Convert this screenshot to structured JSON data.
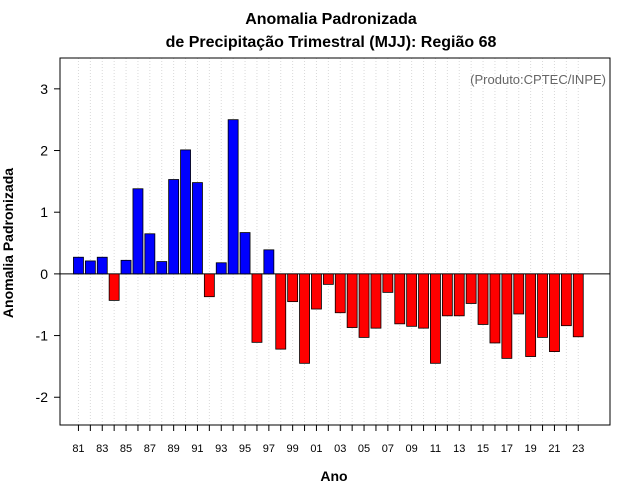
{
  "chart_data": {
    "type": "bar",
    "title": "Anomalia Padronizada",
    "subtitle": "de Precipitação Trimestral (MJJ): Região 68",
    "xlabel": "Ano",
    "ylabel": "Anomalia Padronizada",
    "credit": "(Produto:CPTEC/INPE)",
    "ylim": [
      -2.45,
      3.5
    ],
    "yticks": [
      -2,
      -1,
      0,
      1,
      2,
      3
    ],
    "ytick_labels": [
      "-2",
      "-1",
      "0",
      "1",
      "2",
      "3"
    ],
    "xtick_labels": [
      "81",
      "83",
      "85",
      "87",
      "89",
      "91",
      "93",
      "95",
      "97",
      "99",
      "01",
      "03",
      "05",
      "07",
      "09",
      "11",
      "13",
      "15",
      "17",
      "19",
      "21",
      "23"
    ],
    "categories": [
      "81",
      "82",
      "83",
      "84",
      "85",
      "86",
      "87",
      "88",
      "89",
      "90",
      "91",
      "92",
      "93",
      "94",
      "95",
      "96",
      "97",
      "98",
      "99",
      "00",
      "01",
      "02",
      "03",
      "04",
      "05",
      "06",
      "07",
      "08",
      "09",
      "10",
      "11",
      "12",
      "13",
      "14",
      "15",
      "16",
      "17",
      "18",
      "19",
      "20",
      "21",
      "22",
      "23"
    ],
    "values": [
      0.27,
      0.21,
      0.27,
      -0.43,
      0.22,
      1.38,
      0.65,
      0.2,
      1.53,
      2.01,
      1.48,
      -0.37,
      0.18,
      2.5,
      0.67,
      -1.11,
      0.39,
      -1.22,
      -0.45,
      -1.45,
      -0.57,
      -0.17,
      -0.63,
      -0.87,
      -1.03,
      -0.88,
      -0.3,
      -0.81,
      -0.85,
      -0.88,
      -1.45,
      -0.68,
      -0.68,
      -0.48,
      -0.82,
      -1.12,
      -1.37,
      -0.65,
      -1.34,
      -1.03,
      -1.26,
      -0.84,
      -1.02
    ],
    "colors": {
      "positive": "#0000ff",
      "negative": "#ff0000",
      "grid": "#d9d9d9",
      "zero_line": "#000000",
      "bar_edge": "#000000"
    },
    "grid": true
  }
}
